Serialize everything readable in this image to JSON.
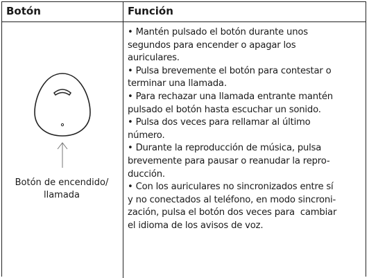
{
  "table": {
    "header": [
      "Botón",
      "Función"
    ],
    "button_label": [
      "Botón de encendido/",
      "llamada"
    ],
    "function_lines": [
      "• Mantén pulsado el botón durante unos",
      "segundos para encender o apagar los",
      "auriculares.",
      "• Pulsa brevemente el botón para contestar o",
      "terminar una llamada.",
      "• Para rechazar una llamada entrante mantén",
      "pulsado el botón hasta escuchar un sonido.",
      "• Pulsa dos veces para rellamar al último",
      "número.",
      "• Durante la reproducción de música, pulsa",
      "brevemente para pausar o reanudar la repro-",
      "ducción.",
      "• Con los auriculares no sincronizados entre sí",
      "y no conectados al teléfono, en modo sincroni-",
      "zación, pulsa el botón dos veces para  cambiar",
      "el idioma de los avisos de voz."
    ]
  }
}
